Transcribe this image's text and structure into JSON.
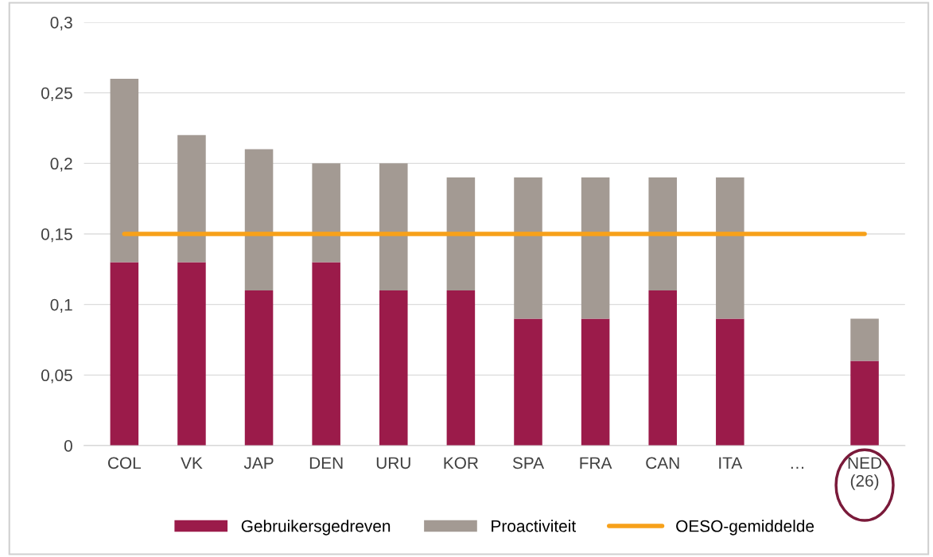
{
  "chart_data": {
    "type": "bar",
    "stacked": true,
    "categories": [
      "COL",
      "VK",
      "JAP",
      "DEN",
      "URU",
      "KOR",
      "SPA",
      "FRA",
      "CAN",
      "ITA",
      "…",
      "NED\n(26)"
    ],
    "series": [
      {
        "name": "Gebruikersgedreven",
        "color": "#9b1b4a",
        "values": [
          0.13,
          0.13,
          0.11,
          0.13,
          0.11,
          0.11,
          0.09,
          0.09,
          0.11,
          0.09,
          null,
          0.06
        ]
      },
      {
        "name": "Proactiviteit",
        "color": "#a39a93",
        "values": [
          0.13,
          0.09,
          0.1,
          0.07,
          0.09,
          0.08,
          0.1,
          0.1,
          0.08,
          0.1,
          null,
          0.03
        ]
      },
      {
        "name": "OESO-gemiddelde",
        "type": "line",
        "color": "#f7a11a",
        "values": [
          0.15,
          0.15,
          0.15,
          0.15,
          0.15,
          0.15,
          0.15,
          0.15,
          0.15,
          0.15,
          0.15,
          0.15
        ]
      }
    ],
    "ylim": [
      0,
      0.3
    ],
    "yticks": [
      0,
      {
        "value": 0.05,
        "label": "0,05"
      },
      {
        "value": 0.1,
        "label": "0,1"
      },
      {
        "value": 0.15,
        "label": "0,15"
      },
      {
        "value": 0.2,
        "label": "0,2"
      },
      {
        "value": 0.25,
        "label": "0,25"
      },
      {
        "value": 0.3,
        "label": "0,3"
      }
    ],
    "grid": "y",
    "legend": "bottom"
  }
}
